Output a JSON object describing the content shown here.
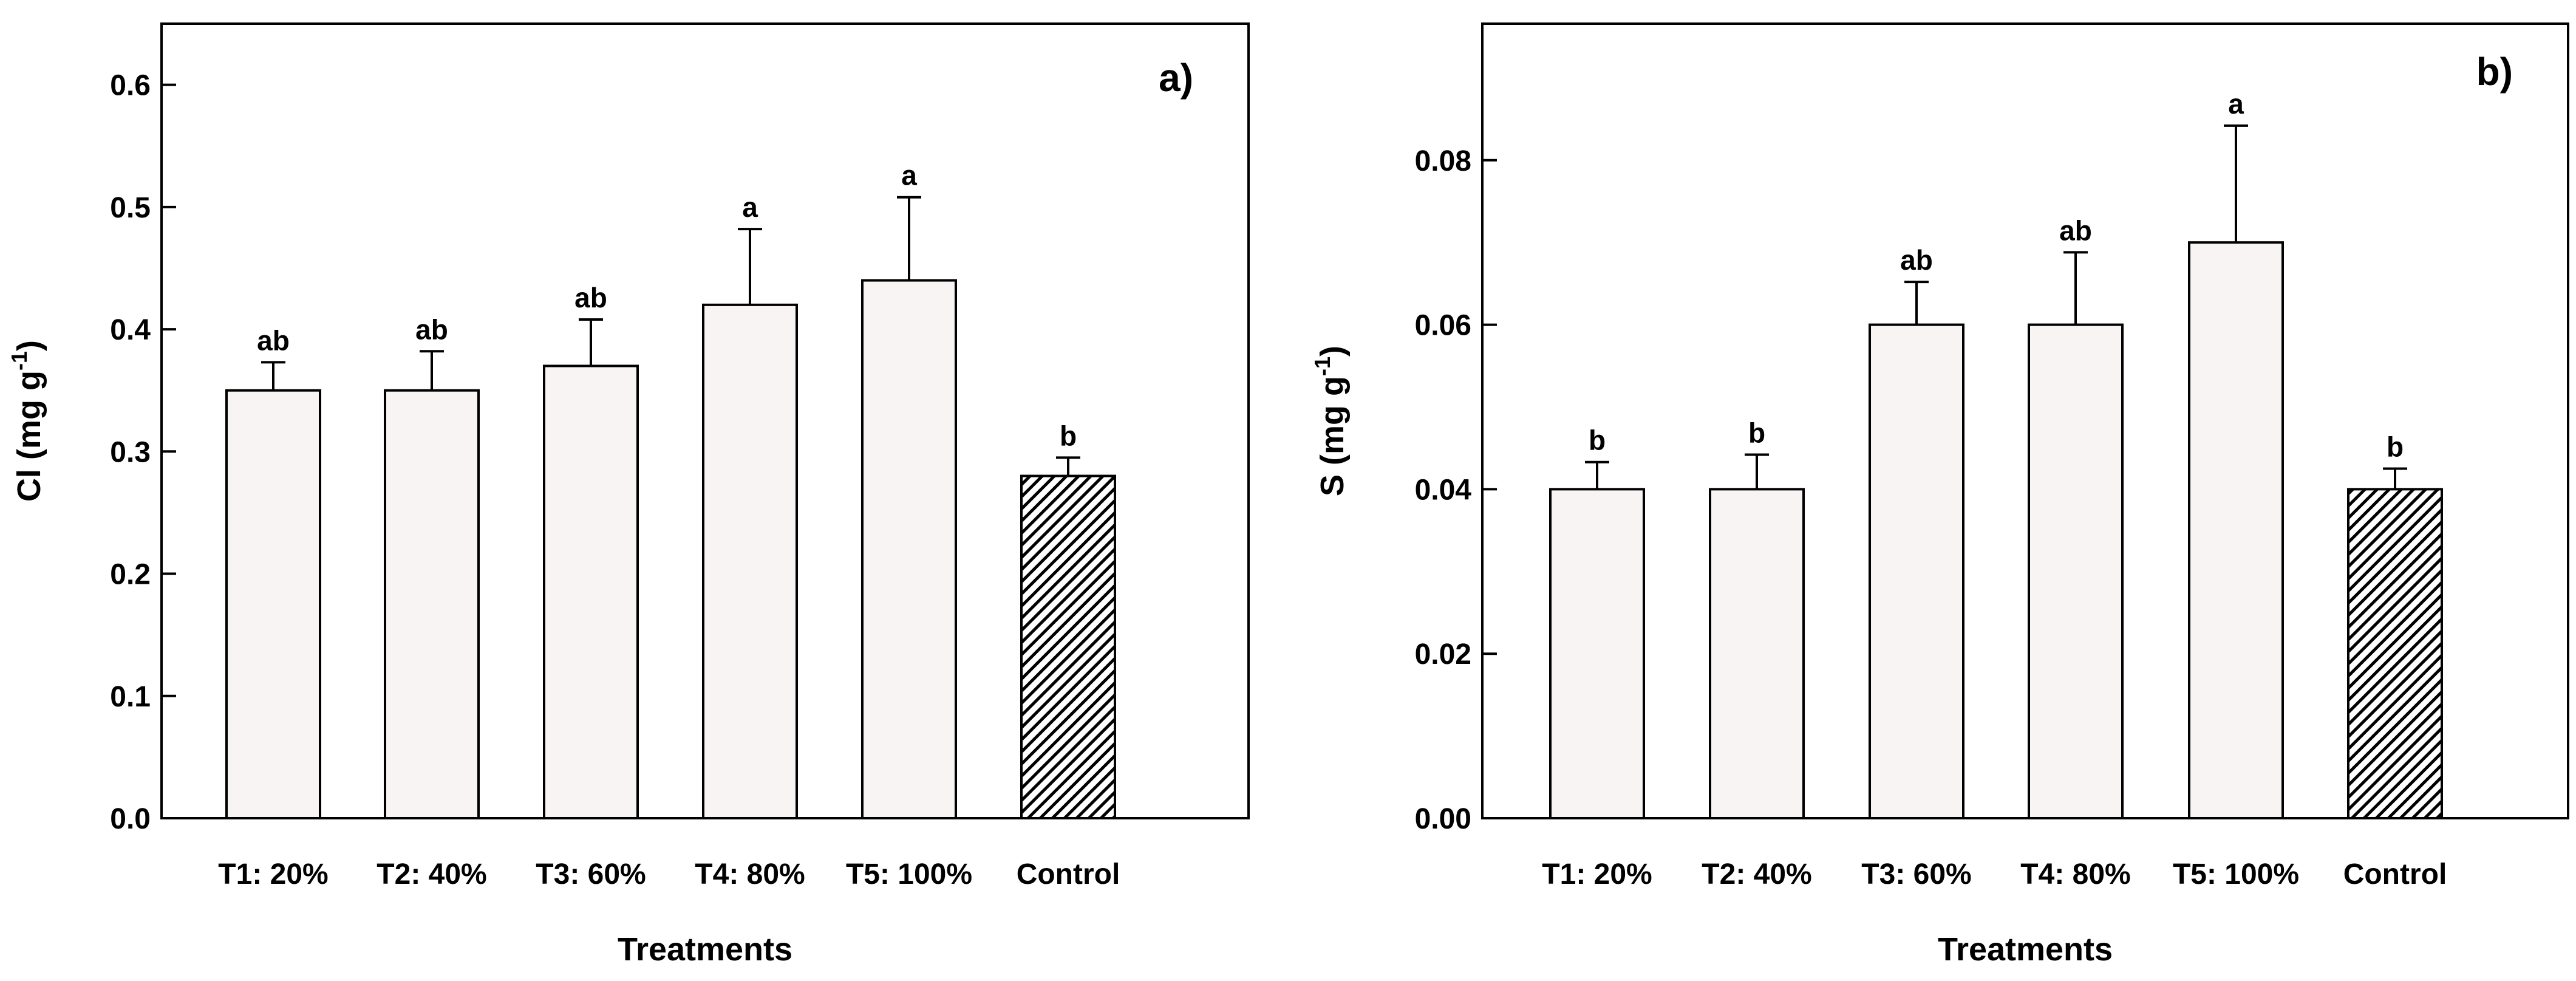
{
  "chart_data": [
    {
      "type": "bar",
      "panel_label": "a)",
      "categories": [
        "T1: 20%",
        "T2: 40%",
        "T3: 60%",
        "T4: 80%",
        "T5: 100%",
        "Control"
      ],
      "values": [
        0.35,
        0.35,
        0.37,
        0.42,
        0.44,
        0.28
      ],
      "errors": [
        0.023,
        0.032,
        0.038,
        0.062,
        0.068,
        0.015
      ],
      "letters": [
        "ab",
        "ab",
        "ab",
        "a",
        "a",
        "b"
      ],
      "xlabel": "Treatments",
      "ylabel": "Cl (mg g",
      "ylabel_sup": "-1",
      "ylabel_close": ")",
      "ylim": [
        0,
        0.65
      ],
      "yticks": [
        0.0,
        0.1,
        0.2,
        0.3,
        0.4,
        0.5,
        0.6
      ],
      "ytick_labels": [
        "0.0",
        "0.1",
        "0.2",
        "0.3",
        "0.4",
        "0.5",
        "0.6"
      ],
      "hatched_category": "Control",
      "bar_fill": "#f8f4f4",
      "hatch_color": "#000000",
      "grid": false
    },
    {
      "type": "bar",
      "panel_label": "b)",
      "categories": [
        "T1: 20%",
        "T2: 40%",
        "T3: 60%",
        "T4: 80%",
        "T5: 100%",
        "Control"
      ],
      "values": [
        0.04,
        0.04,
        0.06,
        0.06,
        0.07,
        0.04
      ],
      "errors": [
        0.0033,
        0.0042,
        0.0052,
        0.0088,
        0.0142,
        0.0025
      ],
      "letters": [
        "b",
        "b",
        "ab",
        "ab",
        "a",
        "b"
      ],
      "xlabel": "Treatments",
      "ylabel": "S (mg g",
      "ylabel_sup": "-1",
      "ylabel_close": ")",
      "ylim": [
        0,
        0.0966
      ],
      "yticks": [
        0.0,
        0.02,
        0.04,
        0.06,
        0.08
      ],
      "ytick_labels": [
        "0.00",
        "0.02",
        "0.04",
        "0.06",
        "0.08"
      ],
      "hatched_category": "Control",
      "bar_fill": "#f8f4f4",
      "hatch_color": "#000000",
      "grid": false
    }
  ]
}
